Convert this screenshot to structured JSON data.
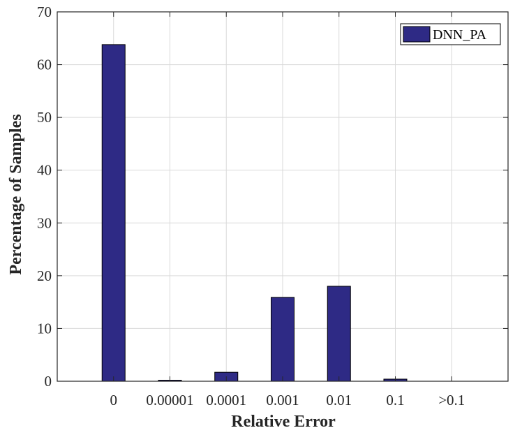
{
  "chart_data": {
    "type": "bar",
    "categories": [
      "0",
      "0.00001",
      "0.0001",
      "0.001",
      "0.01",
      "0.1",
      ">0.1"
    ],
    "series": [
      {
        "name": "DNN_PA",
        "values": [
          63.8,
          0.2,
          1.7,
          15.9,
          18.0,
          0.4,
          0
        ]
      }
    ],
    "title": "",
    "xlabel": "Relative Error",
    "ylabel": "Percentage of Samples",
    "ylim": [
      0,
      70
    ],
    "yticks": [
      0,
      10,
      20,
      30,
      40,
      50,
      60,
      70
    ],
    "grid": true,
    "legend_position": "top-right",
    "colors": {
      "bar": "#2e2a85",
      "bar_edge": "#000000",
      "grid": "#d9d9d9",
      "axis": "#262626"
    }
  }
}
